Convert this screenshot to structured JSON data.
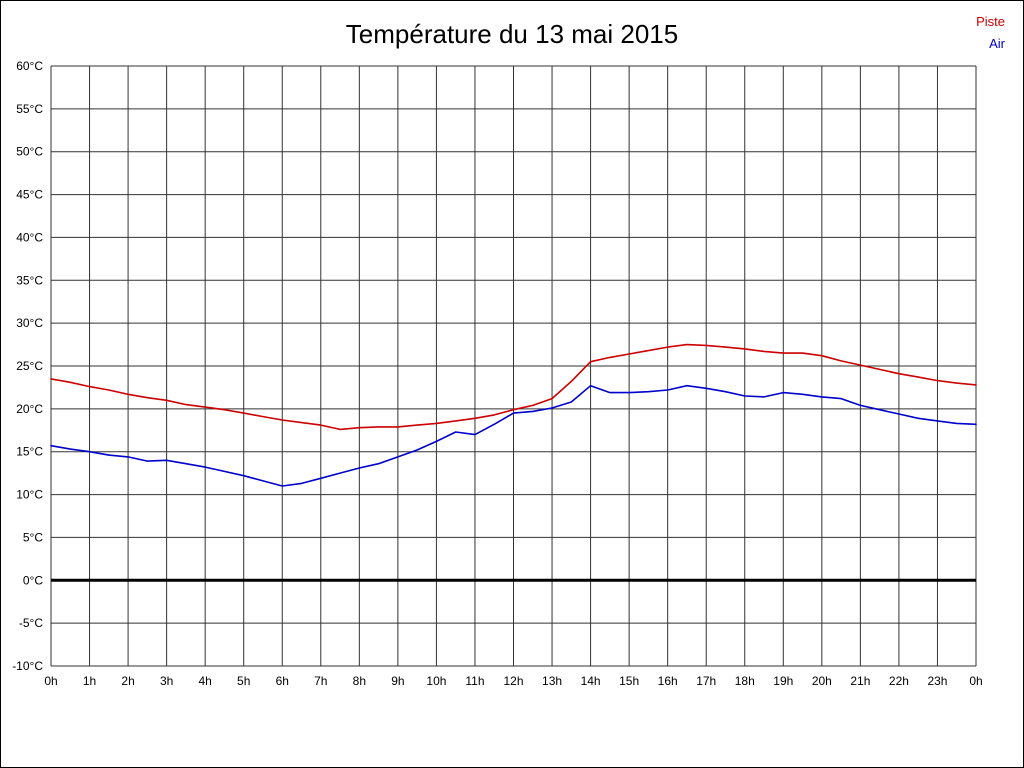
{
  "title": "Température du 13 mai 2015",
  "legend": {
    "piste_label": "Piste",
    "air_label": "Air",
    "piste_color": "#cc0000",
    "air_color": "#0000cc"
  },
  "chart_data": {
    "type": "line",
    "title": "Température du 13 mai 2015",
    "xlabel": "",
    "ylabel": "",
    "xlim": [
      0,
      24
    ],
    "ylim": [
      -10,
      60
    ],
    "grid": true,
    "legend_position": "top-right",
    "zero_line": {
      "value": 0,
      "color": "#000000",
      "width": 3
    },
    "x_ticks": [
      {
        "t": 0,
        "label": "0h"
      },
      {
        "t": 1,
        "label": "1h"
      },
      {
        "t": 2,
        "label": "2h"
      },
      {
        "t": 3,
        "label": "3h"
      },
      {
        "t": 4,
        "label": "4h"
      },
      {
        "t": 5,
        "label": "5h"
      },
      {
        "t": 6,
        "label": "6h"
      },
      {
        "t": 7,
        "label": "7h"
      },
      {
        "t": 8,
        "label": "8h"
      },
      {
        "t": 9,
        "label": "9h"
      },
      {
        "t": 10,
        "label": "10h"
      },
      {
        "t": 11,
        "label": "11h"
      },
      {
        "t": 12,
        "label": "12h"
      },
      {
        "t": 13,
        "label": "13h"
      },
      {
        "t": 14,
        "label": "14h"
      },
      {
        "t": 15,
        "label": "15h"
      },
      {
        "t": 16,
        "label": "16h"
      },
      {
        "t": 17,
        "label": "17h"
      },
      {
        "t": 18,
        "label": "18h"
      },
      {
        "t": 19,
        "label": "19h"
      },
      {
        "t": 20,
        "label": "20h"
      },
      {
        "t": 21,
        "label": "21h"
      },
      {
        "t": 22,
        "label": "22h"
      },
      {
        "t": 23,
        "label": "23h"
      },
      {
        "t": 24,
        "label": "0h"
      }
    ],
    "y_ticks": [
      {
        "v": 60,
        "label": "60°C"
      },
      {
        "v": 55,
        "label": "55°C"
      },
      {
        "v": 50,
        "label": "50°C"
      },
      {
        "v": 45,
        "label": "45°C"
      },
      {
        "v": 40,
        "label": "40°C"
      },
      {
        "v": 35,
        "label": "35°C"
      },
      {
        "v": 30,
        "label": "30°C"
      },
      {
        "v": 25,
        "label": "25°C"
      },
      {
        "v": 20,
        "label": "20°C"
      },
      {
        "v": 15,
        "label": "15°C"
      },
      {
        "v": 10,
        "label": "10°C"
      },
      {
        "v": 5,
        "label": "5°C"
      },
      {
        "v": 0,
        "label": "0°C"
      },
      {
        "v": -5,
        "label": "-5°C"
      },
      {
        "v": -10,
        "label": "-10°C"
      }
    ],
    "x": [
      0,
      0.5,
      1,
      1.5,
      2,
      2.5,
      3,
      3.5,
      4,
      4.5,
      5,
      5.5,
      6,
      6.5,
      7,
      7.5,
      8,
      8.5,
      9,
      9.5,
      10,
      10.5,
      11,
      11.5,
      12,
      12.5,
      13,
      13.5,
      14,
      14.5,
      15,
      15.5,
      16,
      16.5,
      17,
      17.5,
      18,
      18.5,
      19,
      19.5,
      20,
      20.5,
      21,
      21.5,
      22,
      22.5,
      23,
      23.5,
      24
    ],
    "series": [
      {
        "name": "Piste",
        "color": "#cc0000",
        "values": [
          23.5,
          23.1,
          22.6,
          22.2,
          21.7,
          21.3,
          21.0,
          20.5,
          20.2,
          19.9,
          19.5,
          19.1,
          18.7,
          18.4,
          18.1,
          17.6,
          17.8,
          17.9,
          17.9,
          18.1,
          18.3,
          18.6,
          18.9,
          19.3,
          19.9,
          20.4,
          21.2,
          23.2,
          25.5,
          26.0,
          26.4,
          26.8,
          27.2,
          27.5,
          27.4,
          27.2,
          27.0,
          26.7,
          26.5,
          26.5,
          26.2,
          25.6,
          25.1,
          24.6,
          24.1,
          23.7,
          23.3,
          23.0,
          22.8
        ]
      },
      {
        "name": "Air",
        "color": "#0000cc",
        "values": [
          15.7,
          15.3,
          15.0,
          14.6,
          14.4,
          13.9,
          14.0,
          13.6,
          13.2,
          12.7,
          12.2,
          11.6,
          11.0,
          11.3,
          11.9,
          12.5,
          13.1,
          13.6,
          14.4,
          15.2,
          16.2,
          17.3,
          17.0,
          18.2,
          19.5,
          19.7,
          20.1,
          20.8,
          22.7,
          21.9,
          21.9,
          22.0,
          22.2,
          22.7,
          22.4,
          22.0,
          21.5,
          21.4,
          21.9,
          21.7,
          21.4,
          21.2,
          20.4,
          19.9,
          19.4,
          18.9,
          18.6,
          18.3,
          18.2
        ]
      }
    ]
  }
}
